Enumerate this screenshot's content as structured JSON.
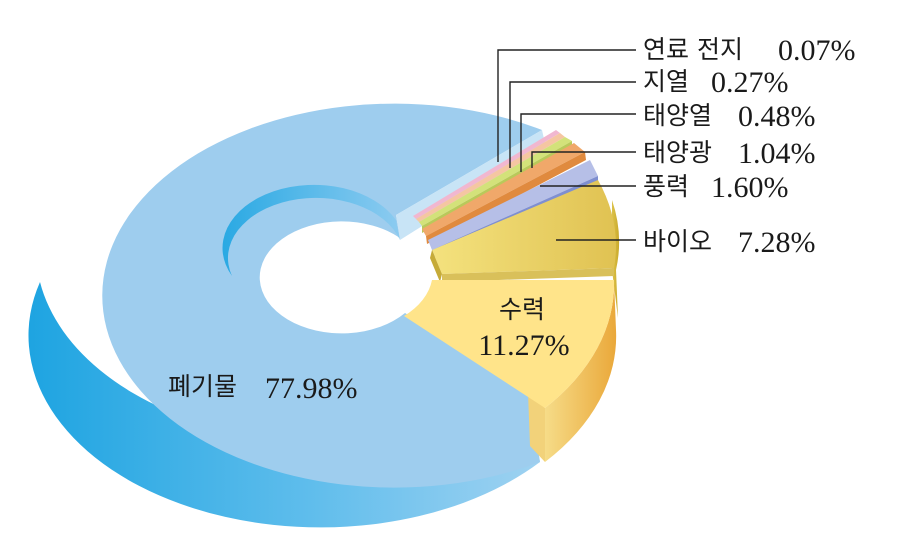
{
  "chart_data": {
    "type": "pie",
    "style": "3d-exploded-donut",
    "slices": [
      {
        "key": "fuel_cell",
        "label": "연료 전지",
        "value_text": "0.07%",
        "value": 0.07,
        "color": "#f1b7d0"
      },
      {
        "key": "geothermal",
        "label": "지열",
        "value_text": "0.27%",
        "value": 0.27,
        "color": "#f5c6a2"
      },
      {
        "key": "solar_heat",
        "label": "태양열",
        "value_text": "0.48%",
        "value": 0.48,
        "color": "#d3e27a"
      },
      {
        "key": "solar_pv",
        "label": "태양광",
        "value_text": "1.04%",
        "value": 1.04,
        "color": "#f0a86a"
      },
      {
        "key": "wind",
        "label": "풍력",
        "value_text": "1.60%",
        "value": 1.6,
        "color": "#b6bfe7"
      },
      {
        "key": "bio",
        "label": "바이오",
        "value_text": "7.28%",
        "value": 7.28,
        "color": "#ecd266"
      },
      {
        "key": "hydro",
        "label": "수력",
        "value_text": "11.27%",
        "value": 11.27,
        "color": "#ffe48a"
      },
      {
        "key": "waste",
        "label": "폐기물",
        "value_text": "77.98%",
        "value": 77.98,
        "color": "#9ecdee"
      }
    ]
  }
}
